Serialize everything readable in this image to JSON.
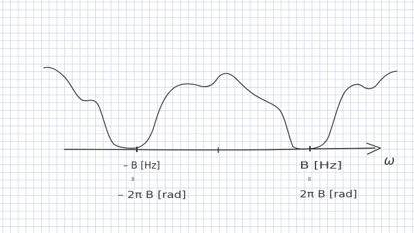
{
  "colors": {
    "paper": "#ffffff",
    "grid": "#c8d0e4",
    "ink": "#2f2f2f"
  },
  "axis": {
    "variable": "ω"
  },
  "labels": {
    "left_hz": "– B [Hz]",
    "left_equiv": "॥",
    "left_rad": "– 2π B [rad]",
    "right_hz": "B [Hz]",
    "right_equiv": "॥",
    "right_rad": "2π B [rad]"
  }
}
